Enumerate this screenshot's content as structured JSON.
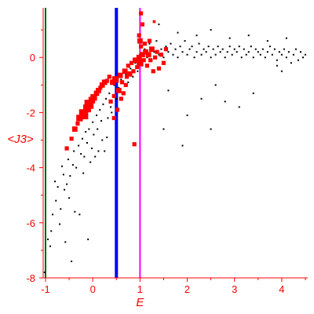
{
  "chart_data": {
    "type": "scatter",
    "title": "",
    "xlabel": "E",
    "ylabel": "<J3>",
    "xlim": [
      -1.05,
      4.55
    ],
    "ylim": [
      -8.0,
      1.8
    ],
    "x_ticks": [
      -1,
      0,
      1,
      2,
      3,
      4
    ],
    "y_ticks": [
      -8,
      -6,
      -4,
      -2,
      0
    ],
    "x_tick_labels": [
      "-1",
      "0",
      "1",
      "2",
      "3",
      "4"
    ],
    "y_tick_labels": [
      "-8",
      "-6",
      "-4",
      "-2",
      "0"
    ],
    "grid": false,
    "legend": "none",
    "colors": {
      "axis": "#ff0000",
      "black_points": "#000000",
      "red_points": "#ff0000",
      "line_green": "#006400",
      "line_blue": "#0000ff",
      "line_magenta": "#ff00ff"
    },
    "vertical_lines": [
      {
        "x": -1.0,
        "color": "#006400"
      },
      {
        "x": 0.5,
        "color": "#0000ff"
      },
      {
        "x": 1.0,
        "color": "#ff00ff"
      }
    ],
    "series": [
      {
        "color": "#000000",
        "marker": "small-square",
        "points": [
          [
            -1.02,
            -7.8
          ],
          [
            -0.95,
            -6.6
          ],
          [
            -0.9,
            -6.85
          ],
          [
            -0.88,
            -6.3
          ],
          [
            -0.85,
            -5.7
          ],
          [
            -0.8,
            -4.5
          ],
          [
            -0.78,
            -5.2
          ],
          [
            -0.74,
            -4.7
          ],
          [
            -0.7,
            -6.05
          ],
          [
            -0.68,
            -5.5
          ],
          [
            -0.65,
            -3.95
          ],
          [
            -0.62,
            -4.25
          ],
          [
            -0.6,
            -4.8
          ],
          [
            -0.58,
            -6.7
          ],
          [
            -0.55,
            -4.6
          ],
          [
            -0.52,
            -3.7
          ],
          [
            -0.5,
            -5.1
          ],
          [
            -0.48,
            -4.3
          ],
          [
            -0.45,
            -7.4
          ],
          [
            -0.42,
            -3.9
          ],
          [
            -0.4,
            -3.4
          ],
          [
            -0.38,
            -5.6
          ],
          [
            -0.35,
            -4.0
          ],
          [
            -0.3,
            -3.2
          ],
          [
            -0.28,
            -5.7
          ],
          [
            -0.25,
            -3.5
          ],
          [
            -0.22,
            -2.95
          ],
          [
            -0.2,
            -4.2
          ],
          [
            -0.18,
            -3.6
          ],
          [
            -0.15,
            -2.7
          ],
          [
            -0.12,
            -3.1
          ],
          [
            -0.1,
            -6.6
          ],
          [
            -0.08,
            -2.6
          ],
          [
            -0.05,
            -3.8
          ],
          [
            -0.02,
            -3.3
          ],
          [
            0.0,
            -2.35
          ],
          [
            0.02,
            -2.8
          ],
          [
            0.05,
            -3.6
          ],
          [
            0.08,
            -2.1
          ],
          [
            0.1,
            -2.6
          ],
          [
            0.12,
            -3.4
          ],
          [
            0.15,
            -1.9
          ],
          [
            0.18,
            -2.3
          ],
          [
            0.2,
            -3.0
          ],
          [
            0.22,
            -1.7
          ],
          [
            0.25,
            -3.4
          ],
          [
            0.28,
            -1.5
          ],
          [
            0.3,
            -2.9
          ],
          [
            0.32,
            -2.2
          ],
          [
            0.35,
            -1.3
          ],
          [
            0.38,
            -1.8
          ],
          [
            0.4,
            -2.0
          ],
          [
            0.45,
            -1.0
          ],
          [
            0.5,
            -1.5
          ],
          [
            0.55,
            -1.1
          ],
          [
            0.6,
            -0.8
          ],
          [
            0.65,
            -1.3
          ],
          [
            0.7,
            -0.6
          ],
          [
            0.75,
            -0.9
          ],
          [
            0.8,
            -0.4
          ],
          [
            0.85,
            -0.7
          ],
          [
            0.9,
            -0.2
          ],
          [
            0.95,
            -0.5
          ],
          [
            1.0,
            0.1
          ],
          [
            1.05,
            -0.3
          ],
          [
            1.1,
            0.3
          ],
          [
            1.15,
            0.0
          ],
          [
            1.2,
            0.5
          ],
          [
            1.25,
            -0.1
          ],
          [
            1.3,
            0.2
          ],
          [
            1.35,
            0.6
          ],
          [
            1.4,
            0.1
          ],
          [
            1.45,
            0.3
          ],
          [
            1.5,
            0.0
          ],
          [
            1.55,
            0.4
          ],
          [
            1.6,
            0.2
          ],
          [
            1.65,
            0.5
          ],
          [
            1.7,
            0.1
          ],
          [
            1.75,
            0.3
          ],
          [
            1.8,
            0.0
          ],
          [
            1.85,
            0.4
          ],
          [
            1.9,
            0.2
          ],
          [
            1.95,
            0.6
          ],
          [
            2.0,
            0.1
          ],
          [
            2.05,
            0.3
          ],
          [
            2.1,
            0.4
          ],
          [
            2.15,
            0.0
          ],
          [
            2.2,
            0.2
          ],
          [
            2.25,
            0.5
          ],
          [
            2.3,
            0.1
          ],
          [
            2.35,
            0.3
          ],
          [
            2.4,
            0.2
          ],
          [
            2.45,
            0.4
          ],
          [
            2.5,
            0.0
          ],
          [
            2.55,
            0.3
          ],
          [
            2.6,
            0.1
          ],
          [
            2.65,
            0.4
          ],
          [
            2.7,
            0.2
          ],
          [
            2.75,
            0.3
          ],
          [
            2.8,
            0.0
          ],
          [
            2.85,
            0.2
          ],
          [
            2.9,
            0.4
          ],
          [
            2.95,
            0.1
          ],
          [
            3.0,
            0.3
          ],
          [
            3.05,
            0.2
          ],
          [
            3.1,
            0.4
          ],
          [
            3.15,
            0.0
          ],
          [
            3.2,
            0.3
          ],
          [
            3.25,
            0.1
          ],
          [
            3.3,
            0.2
          ],
          [
            3.35,
            0.4
          ],
          [
            3.4,
            0.0
          ],
          [
            3.45,
            0.3
          ],
          [
            3.5,
            0.2
          ],
          [
            3.55,
            0.1
          ],
          [
            3.6,
            0.3
          ],
          [
            3.65,
            0.0
          ],
          [
            3.7,
            0.2
          ],
          [
            3.75,
            0.4
          ],
          [
            3.8,
            0.1
          ],
          [
            3.85,
            0.3
          ],
          [
            3.9,
            -0.1
          ],
          [
            3.95,
            0.2
          ],
          [
            4.0,
            0.1
          ],
          [
            4.05,
            0.3
          ],
          [
            4.1,
            0.0
          ],
          [
            4.15,
            0.2
          ],
          [
            4.2,
            -0.2
          ],
          [
            4.25,
            0.1
          ],
          [
            4.3,
            0.3
          ],
          [
            4.35,
            -0.1
          ],
          [
            4.4,
            0.2
          ],
          [
            4.45,
            0.0
          ],
          [
            4.5,
            0.1
          ],
          [
            1.4,
            1.2
          ],
          [
            1.8,
            0.9
          ],
          [
            2.2,
            0.8
          ],
          [
            2.5,
            1.0
          ],
          [
            2.9,
            0.7
          ],
          [
            3.3,
            0.8
          ],
          [
            3.7,
            0.6
          ],
          [
            4.1,
            0.7
          ],
          [
            1.6,
            -1.2
          ],
          [
            2.0,
            -2.1
          ],
          [
            2.3,
            -1.5
          ],
          [
            2.5,
            -2.6
          ],
          [
            2.6,
            -1.0
          ],
          [
            2.8,
            -1.6
          ],
          [
            3.1,
            -1.8
          ],
          [
            3.4,
            -1.3
          ],
          [
            1.9,
            -3.2
          ],
          [
            1.5,
            -2.6
          ],
          [
            4.0,
            -0.5
          ],
          [
            3.9,
            -0.3
          ]
        ]
      },
      {
        "color": "#ff0000",
        "marker": "square-sized",
        "points": [
          [
            -0.55,
            -3.3,
            2
          ],
          [
            -0.45,
            -2.95,
            2
          ],
          [
            -0.38,
            -2.6,
            3
          ],
          [
            -0.32,
            -2.4,
            2
          ],
          [
            -0.28,
            -2.2,
            4
          ],
          [
            -0.22,
            -2.0,
            4
          ],
          [
            -0.18,
            -2.1,
            5
          ],
          [
            -0.12,
            -1.85,
            5
          ],
          [
            -0.08,
            -1.7,
            6
          ],
          [
            -0.02,
            -1.55,
            4
          ],
          [
            0.02,
            -1.45,
            4
          ],
          [
            0.08,
            -1.3,
            3
          ],
          [
            0.12,
            -1.2,
            3
          ],
          [
            0.16,
            -1.1,
            2
          ],
          [
            0.2,
            -1.0,
            3
          ],
          [
            0.25,
            -0.9,
            3
          ],
          [
            0.3,
            -0.85,
            2
          ],
          [
            0.35,
            -0.7,
            2
          ],
          [
            0.38,
            -1.6,
            2
          ],
          [
            0.42,
            -0.9,
            3
          ],
          [
            0.45,
            -1.4,
            2
          ],
          [
            0.48,
            -0.8,
            4
          ],
          [
            0.52,
            -1.9,
            2
          ],
          [
            0.55,
            -1.2,
            3
          ],
          [
            0.58,
            -0.65,
            3
          ],
          [
            0.62,
            -0.9,
            2
          ],
          [
            0.65,
            -1.3,
            2
          ],
          [
            0.68,
            -0.5,
            3
          ],
          [
            0.72,
            -0.7,
            2
          ],
          [
            0.75,
            -0.3,
            2
          ],
          [
            0.78,
            -0.6,
            3
          ],
          [
            0.82,
            -0.2,
            2
          ],
          [
            0.86,
            -0.5,
            2
          ],
          [
            0.9,
            -0.1,
            3
          ],
          [
            0.94,
            -0.35,
            2
          ],
          [
            0.98,
            0.0,
            3
          ],
          [
            1.0,
            -0.2,
            4
          ],
          [
            1.02,
            0.4,
            2
          ],
          [
            1.05,
            0.1,
            3
          ],
          [
            1.08,
            -0.1,
            2
          ],
          [
            1.1,
            0.5,
            2
          ],
          [
            1.12,
            0.2,
            3
          ],
          [
            1.15,
            -0.3,
            2
          ],
          [
            1.18,
            0.1,
            3
          ],
          [
            1.2,
            0.6,
            2
          ],
          [
            1.22,
            -0.1,
            2
          ],
          [
            1.25,
            0.3,
            3
          ],
          [
            1.28,
            -0.5,
            2
          ],
          [
            1.32,
            0.0,
            2
          ],
          [
            1.36,
            0.2,
            2
          ],
          [
            1.4,
            -0.4,
            2
          ],
          [
            1.45,
            0.1,
            2
          ],
          [
            1.5,
            -0.2,
            2
          ],
          [
            1.55,
            0.3,
            2
          ],
          [
            1.0,
            0.6,
            3
          ],
          [
            0.98,
            0.8,
            2
          ],
          [
            1.02,
            1.6,
            2
          ],
          [
            1.05,
            1.2,
            2
          ],
          [
            0.88,
            -3.15,
            2
          ],
          [
            1.3,
            1.3,
            1
          ],
          [
            0.6,
            -1.5,
            2
          ],
          [
            0.45,
            -2.2,
            2
          ],
          [
            0.7,
            -1.0,
            2
          ]
        ]
      }
    ]
  }
}
